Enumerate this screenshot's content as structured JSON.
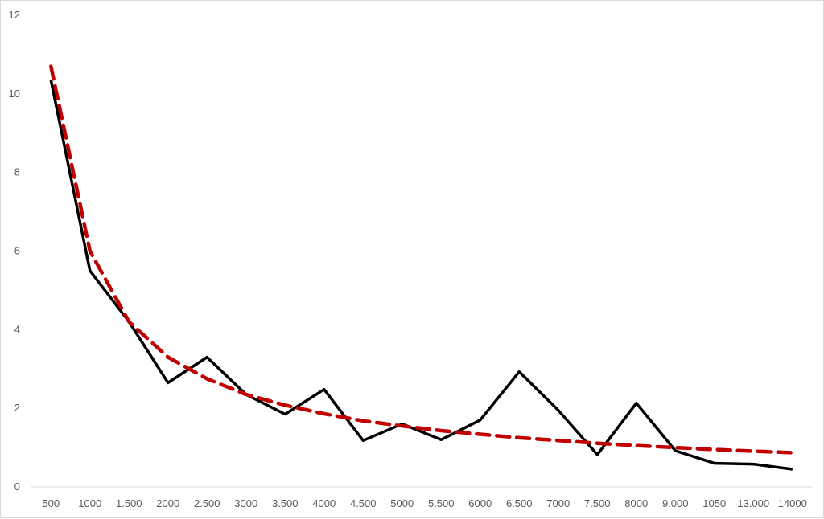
{
  "chart_data": {
    "type": "line",
    "title": "",
    "xlabel": "",
    "ylabel": "",
    "categories": [
      "500",
      "1000",
      "1.500",
      "2000",
      "2.500",
      "3000",
      "3.500",
      "4000",
      "4.500",
      "5000",
      "5.500",
      "6000",
      "6.500",
      "7000",
      "7.500",
      "8000",
      "9.000",
      "1050",
      "13.000",
      "14000"
    ],
    "ylim": [
      0,
      12
    ],
    "yticks": [
      "0",
      "2",
      "4",
      "6",
      "8",
      "10",
      "12"
    ],
    "grid": false,
    "legend": "none",
    "series": [
      {
        "color": "#000000",
        "style": "solid",
        "values": [
          10.35,
          5.5,
          4.2,
          2.65,
          3.3,
          2.35,
          1.85,
          2.48,
          1.18,
          1.6,
          1.2,
          1.7,
          2.93,
          1.95,
          0.82,
          2.13,
          0.92,
          0.6,
          0.58,
          0.45
        ]
      },
      {
        "color": "#c00000",
        "style": "dashed",
        "values": [
          10.7,
          6.0,
          4.2,
          3.3,
          2.75,
          2.35,
          2.08,
          1.86,
          1.68,
          1.55,
          1.43,
          1.34,
          1.25,
          1.18,
          1.11,
          1.05,
          1.0,
          0.95,
          0.91,
          0.87
        ]
      }
    ]
  }
}
